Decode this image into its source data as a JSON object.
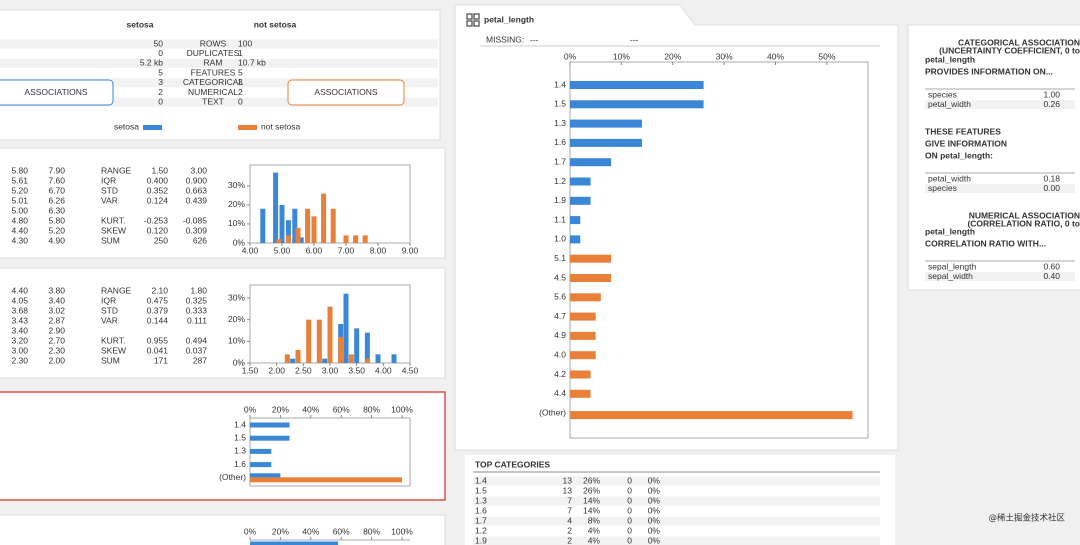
{
  "summary": {
    "titles": [
      "setosa",
      "not setosa"
    ],
    "rows": [
      [
        "ROWS",
        "50",
        "100"
      ],
      [
        "DUPLICATES",
        "0",
        "1"
      ],
      [
        "RAM",
        "5.2 kb",
        "10.7 kb"
      ],
      [
        "FEATURES",
        "5",
        "5"
      ],
      [
        "CATEGORICAL",
        "3",
        "3"
      ],
      [
        "NUMERICAL",
        "2",
        "2"
      ],
      [
        "TEXT",
        "0",
        "0"
      ]
    ],
    "buttons": [
      "ASSOCIATIONS",
      "ASSOCIATIONS"
    ],
    "legend": [
      {
        "name": "setosa",
        "color": "#3a87d8"
      },
      {
        "name": "not setosa",
        "color": "#e8803a"
      }
    ]
  },
  "features": [
    {
      "quantiles": [
        [
          "5.80",
          "7.90"
        ],
        [
          "5.61",
          "7.60"
        ],
        [
          "5.20",
          "6.70"
        ],
        [
          "5.01",
          "6.26"
        ],
        [
          "5.00",
          "6.30"
        ],
        [
          "4.80",
          "5.80"
        ],
        [
          "4.40",
          "5.20"
        ],
        [
          "4.30",
          "4.90"
        ]
      ],
      "stats": [
        [
          "RANGE",
          "1.50",
          "3.00"
        ],
        [
          "IQR",
          "0.400",
          "0.900"
        ],
        [
          "STD",
          "0.352",
          "0.663"
        ],
        [
          "VAR",
          "0.124",
          "0.439"
        ],
        [
          "KURT.",
          "-0.253",
          "-0.085"
        ],
        [
          "SKEW",
          "0.120",
          "0.309"
        ],
        [
          "SUM",
          "250",
          "626"
        ]
      ],
      "hist": {
        "type": "histogram",
        "xlim": [
          4,
          9
        ],
        "ylim": [
          0,
          41
        ],
        "xticks": [
          {
            "value": 4,
            "label": "4.00"
          },
          {
            "value": 5,
            "label": "5.00"
          },
          {
            "value": 6,
            "label": "6.00"
          },
          {
            "value": 7,
            "label": "7.00"
          },
          {
            "value": 8,
            "label": "8.00"
          },
          {
            "value": 9,
            "label": "9.00"
          }
        ],
        "yticks": [
          {
            "value": 0,
            "label": "0%"
          },
          {
            "value": 10,
            "label": "10%"
          },
          {
            "value": 20,
            "label": "20%"
          },
          {
            "value": 30,
            "label": "30%"
          }
        ],
        "series": [
          {
            "name": "setosa",
            "color": "#3a87d8",
            "x": [
              4.4,
              4.8,
              5.0,
              5.2,
              5.4,
              5.6
            ],
            "values": [
              18,
              37,
              20,
              12,
              18,
              3
            ]
          },
          {
            "name": "not setosa",
            "color": "#e8803a",
            "x": [
              4.9,
              5.2,
              5.5,
              5.8,
              6.0,
              6.3,
              6.6,
              7.0,
              7.3,
              7.6
            ],
            "values": [
              2,
              4,
              8,
              18,
              14,
              26,
              18,
              4,
              4,
              4
            ]
          }
        ]
      }
    },
    {
      "quantiles": [
        [
          "4.40",
          "3.80"
        ],
        [
          "4.05",
          "3.40"
        ],
        [
          "3.68",
          "3.02"
        ],
        [
          "3.43",
          "2.87"
        ],
        [
          "3.40",
          "2.90"
        ],
        [
          "3.20",
          "2.70"
        ],
        [
          "3.00",
          "2.30"
        ],
        [
          "2.30",
          "2.00"
        ]
      ],
      "stats": [
        [
          "RANGE",
          "2.10",
          "1.80"
        ],
        [
          "IQR",
          "0.475",
          "0.325"
        ],
        [
          "STD",
          "0.379",
          "0.333"
        ],
        [
          "VAR",
          "0.144",
          "0.111"
        ],
        [
          "KURT.",
          "0.955",
          "0.494"
        ],
        [
          "SKEW",
          "0.041",
          "0.037"
        ],
        [
          "SUM",
          "171",
          "287"
        ]
      ],
      "hist": {
        "type": "histogram",
        "xlim": [
          1.5,
          4.5
        ],
        "ylim": [
          0,
          36
        ],
        "xticks": [
          {
            "value": 1.5,
            "label": "1.50"
          },
          {
            "value": 2,
            "label": "2.00"
          },
          {
            "value": 2.5,
            "label": "2.50"
          },
          {
            "value": 3,
            "label": "3.00"
          },
          {
            "value": 3.5,
            "label": "3.50"
          },
          {
            "value": 4,
            "label": "4.00"
          },
          {
            "value": 4.5,
            "label": "4.50"
          }
        ],
        "yticks": [
          {
            "value": 0,
            "label": "0%"
          },
          {
            "value": 10,
            "label": "10%"
          },
          {
            "value": 20,
            "label": "20%"
          },
          {
            "value": 30,
            "label": "30%"
          }
        ],
        "series": [
          {
            "name": "setosa",
            "color": "#3a87d8",
            "x": [
              2.3,
              2.9,
              3.0,
              3.2,
              3.3,
              3.5,
              3.7,
              3.9,
              4.2
            ],
            "values": [
              2,
              2,
              12,
              18,
              32,
              16,
              14,
              4,
              4
            ]
          },
          {
            "name": "not setosa",
            "color": "#e8803a",
            "x": [
              2.2,
              2.4,
              2.6,
              2.8,
              3.0,
              3.2,
              3.4,
              3.7
            ],
            "values": [
              4,
              6,
              20,
              20,
              26,
              12,
              4,
              2
            ]
          }
        ]
      }
    }
  ],
  "small_bars": [
    {
      "type": "bar",
      "xlim": [
        0,
        100
      ],
      "xticks": [
        {
          "value": 0,
          "label": "0%"
        },
        {
          "value": 20,
          "label": "20%"
        },
        {
          "value": 40,
          "label": "40%"
        },
        {
          "value": 60,
          "label": "60%"
        },
        {
          "value": 80,
          "label": "80%"
        },
        {
          "value": 100,
          "label": "100%"
        }
      ],
      "categories": [
        "1.4",
        "1.5",
        "1.3",
        "1.6",
        "(Other)"
      ],
      "series": [
        {
          "name": "setosa",
          "color": "#3a87d8",
          "values": [
            26,
            26,
            14,
            14,
            20
          ]
        },
        {
          "name": "not setosa",
          "color": "#e8803a",
          "values": [
            0,
            0,
            0,
            0,
            100
          ]
        }
      ]
    },
    {
      "type": "bar",
      "xlim": [
        0,
        100
      ],
      "xticks": [
        {
          "value": 0,
          "label": "0%"
        },
        {
          "value": 20,
          "label": "20%"
        },
        {
          "value": 40,
          "label": "40%"
        },
        {
          "value": 60,
          "label": "60%"
        },
        {
          "value": 80,
          "label": "80%"
        },
        {
          "value": 100,
          "label": "100%"
        }
      ],
      "categories": [
        null
      ],
      "series": [
        {
          "name": "setosa",
          "color": "#3a87d8",
          "values": [
            58
          ]
        }
      ]
    }
  ],
  "detail": {
    "title": "petal_length",
    "missing_label": "MISSING:",
    "missing": [
      "---",
      "---"
    ],
    "chart": {
      "type": "bar",
      "xlim": [
        0,
        58
      ],
      "xticks": [
        {
          "value": 0,
          "label": "0%"
        },
        {
          "value": 10,
          "label": "10%"
        },
        {
          "value": 20,
          "label": "20%"
        },
        {
          "value": 30,
          "label": "30%"
        },
        {
          "value": 40,
          "label": "40%"
        },
        {
          "value": 50,
          "label": "50%"
        }
      ],
      "categories": [
        "1.4",
        "1.5",
        "1.3",
        "1.6",
        "1.7",
        "1.2",
        "1.9",
        "1.1",
        "1.0",
        "5.1",
        "4.5",
        "5.6",
        "4.7",
        "4.9",
        "4.0",
        "4.2",
        "4.4",
        "(Other)"
      ],
      "series": [
        {
          "name": "setosa",
          "color": "#3a87d8",
          "values": [
            26,
            26,
            14,
            14,
            8,
            4,
            4,
            2,
            2,
            null,
            null,
            null,
            null,
            null,
            null,
            null,
            null,
            null
          ]
        },
        {
          "name": "not setosa",
          "color": "#e8803a",
          "values": [
            null,
            null,
            null,
            null,
            null,
            null,
            null,
            null,
            null,
            8,
            8,
            6,
            5,
            5,
            5,
            4,
            4,
            55
          ]
        }
      ]
    },
    "top_title": "TOP CATEGORIES",
    "top_rows": [
      [
        "1.4",
        "13",
        "26%",
        "0",
        "0%"
      ],
      [
        "1.5",
        "13",
        "26%",
        "0",
        "0%"
      ],
      [
        "1.3",
        "7",
        "14%",
        "0",
        "0%"
      ],
      [
        "1.6",
        "7",
        "14%",
        "0",
        "0%"
      ],
      [
        "1.7",
        "4",
        "8%",
        "0",
        "0%"
      ],
      [
        "1.2",
        "2",
        "4%",
        "0",
        "0%"
      ],
      [
        "1.9",
        "2",
        "4%",
        "0",
        "0%"
      ]
    ]
  },
  "associations": {
    "cat_title": "CATEGORICAL ASSOCIATION",
    "cat_sub": "(UNCERTAINTY COEFFICIENT, 0 to",
    "provides": [
      "petal_length",
      "PROVIDES INFORMATION ON..."
    ],
    "provides_rows": [
      [
        "species",
        "1.00"
      ],
      [
        "petal_width",
        "0.26"
      ]
    ],
    "gives": [
      "THESE FEATURES",
      "GIVE INFORMATION",
      "ON petal_length:"
    ],
    "gives_rows": [
      [
        "petal_width",
        "0.18"
      ],
      [
        "species",
        "0.00"
      ]
    ],
    "num_title": "NUMERICAL ASSOCIATION",
    "num_sub": "(CORRELATION RATIO, 0 to",
    "corr": [
      "petal_length",
      "CORRELATION RATIO WITH..."
    ],
    "corr_rows": [
      [
        "sepal_length",
        "0.60"
      ],
      [
        "sepal_width",
        "0.40"
      ]
    ]
  },
  "watermark": "@稀土掘金技术社区"
}
